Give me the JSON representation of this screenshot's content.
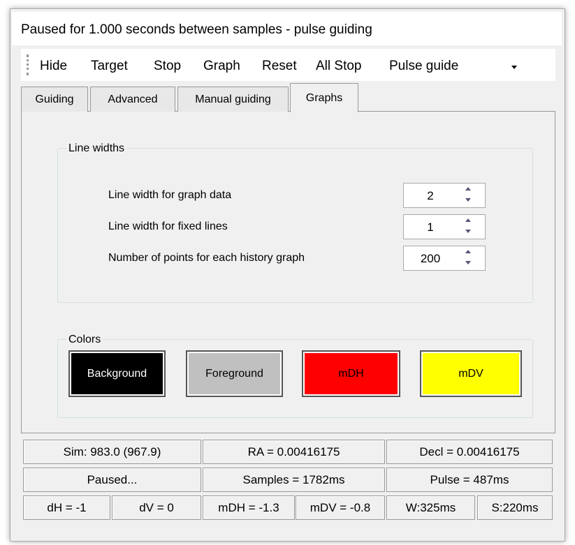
{
  "window": {
    "title": "Paused for 1.000 seconds between samples - pulse guiding"
  },
  "toolbar": {
    "items": [
      "Hide",
      "Target",
      "Stop",
      "Graph",
      "Reset",
      "All Stop"
    ],
    "combo": "Pulse guide"
  },
  "tabs": {
    "items": [
      "Guiding",
      "Advanced",
      "Manual guiding",
      "Graphs"
    ],
    "active": 3
  },
  "line_widths": {
    "title": "Line widths",
    "rows": [
      {
        "label": "Line width for graph data",
        "value": 2
      },
      {
        "label": "Line width for fixed lines",
        "value": 1
      },
      {
        "label": "Number of points for each history graph",
        "value": 200
      }
    ]
  },
  "colors": {
    "title": "Colors",
    "buttons": [
      {
        "label": "Background",
        "color": "#000000",
        "text_color": "#ffffff"
      },
      {
        "label": "Foreground",
        "color": "#c0c0c0",
        "text_color": "#000000"
      },
      {
        "label": "mDH",
        "color": "#ff0000",
        "text_color": "#000000"
      },
      {
        "label": "mDV",
        "color": "#ffff00",
        "text_color": "#000000"
      }
    ]
  },
  "status": {
    "rows": [
      [
        "Sim: 983.0 (967.9)",
        "RA = 0.00416175",
        "Decl = 0.00416175"
      ],
      [
        "Paused...",
        "Samples = 1782ms",
        "Pulse = 487ms"
      ],
      [
        "dH = -1",
        "dV = 0",
        "mDH = -1.3",
        "mDV = -0.8",
        "W:325ms",
        "S:220ms"
      ]
    ]
  }
}
